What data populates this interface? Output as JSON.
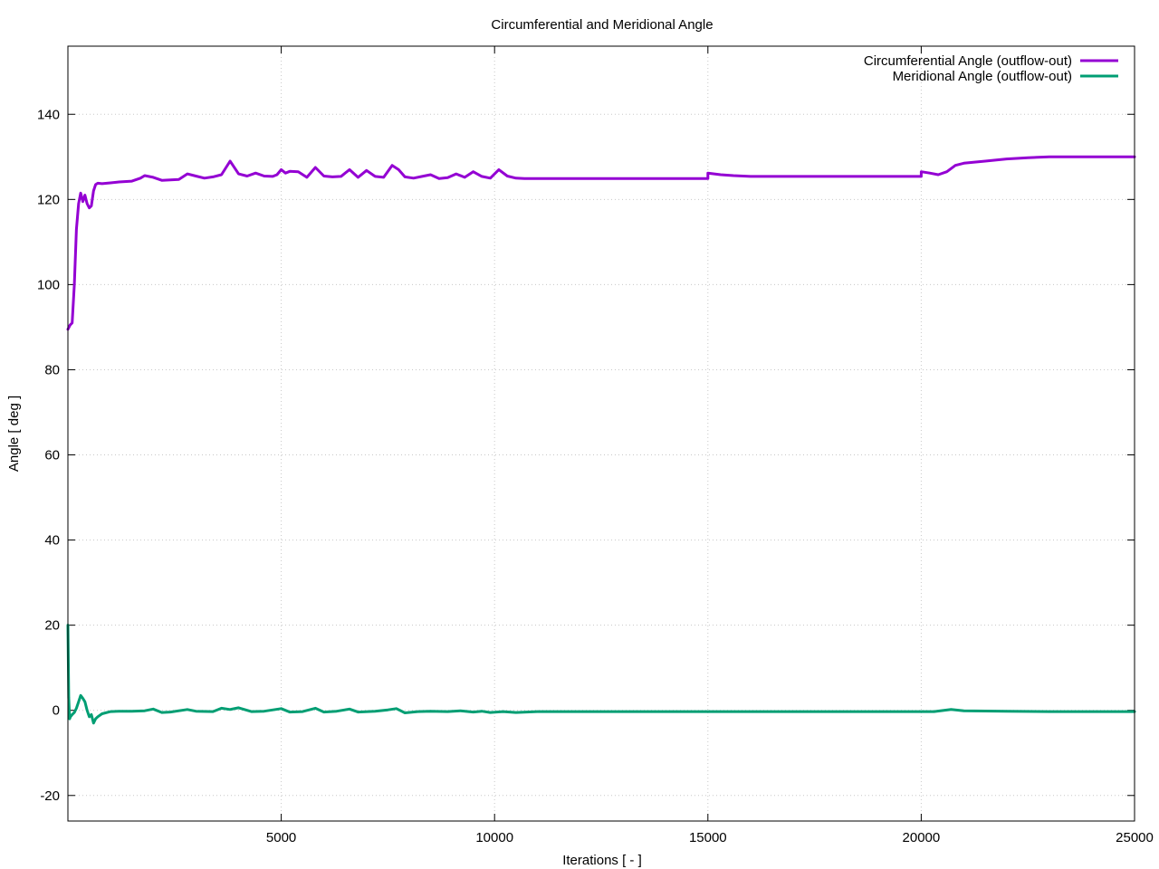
{
  "chart_data": {
    "type": "line",
    "title": "Circumferential and Meridional Angle",
    "xlabel": "Iterations [ - ]",
    "ylabel": "Angle [ deg ]",
    "xlim": [
      0,
      25000
    ],
    "ylim": [
      -26,
      156
    ],
    "xticks": [
      5000,
      10000,
      15000,
      20000,
      25000
    ],
    "yticks": [
      -20,
      0,
      20,
      40,
      60,
      80,
      100,
      120,
      140
    ],
    "grid": true,
    "legend_position": "top-right",
    "series": [
      {
        "name": "Circumferential Angle (outflow-out)",
        "color": "#9400d3",
        "x": [
          0,
          50,
          100,
          150,
          200,
          250,
          300,
          350,
          400,
          450,
          500,
          550,
          600,
          650,
          700,
          800,
          1000,
          1200,
          1500,
          1700,
          1800,
          2000,
          2200,
          2400,
          2600,
          2800,
          3000,
          3200,
          3400,
          3600,
          3800,
          4000,
          4200,
          4400,
          4600,
          4800,
          4900,
          5000,
          5100,
          5200,
          5400,
          5600,
          5800,
          6000,
          6200,
          6400,
          6600,
          6800,
          7000,
          7200,
          7400,
          7600,
          7750,
          7900,
          8100,
          8300,
          8500,
          8700,
          8900,
          9100,
          9300,
          9500,
          9700,
          9900,
          10100,
          10300,
          10500,
          10700,
          11000,
          12000,
          13000,
          14000,
          15000,
          15000,
          15300,
          15600,
          16000,
          17000,
          18000,
          19000,
          20000,
          20000,
          20200,
          20400,
          20600,
          20800,
          21000,
          21500,
          22000,
          22500,
          23000,
          24000,
          25000
        ],
        "y": [
          89.5,
          90.5,
          91,
          100,
          113,
          119,
          121.5,
          119.5,
          121,
          119,
          118,
          118.5,
          122,
          123.5,
          123.8,
          123.7,
          123.9,
          124.1,
          124.3,
          125,
          125.6,
          125.2,
          124.5,
          124.6,
          124.7,
          126,
          125.5,
          125,
          125.3,
          125.8,
          129,
          126,
          125.5,
          126.2,
          125.5,
          125.4,
          125.8,
          127,
          126.2,
          126.6,
          126.5,
          125.2,
          127.5,
          125.5,
          125.3,
          125.4,
          127,
          125.2,
          126.8,
          125.4,
          125.2,
          128,
          127,
          125.3,
          125,
          125.4,
          125.8,
          124.9,
          125.1,
          126,
          125.2,
          126.5,
          125.4,
          125,
          127,
          125.5,
          125,
          124.9,
          124.9,
          124.9,
          124.9,
          124.9,
          124.9,
          126.2,
          125.8,
          125.6,
          125.4,
          125.4,
          125.4,
          125.4,
          125.4,
          126.5,
          126.2,
          125.8,
          126.5,
          128,
          128.5,
          129,
          129.5,
          129.8,
          130,
          130,
          130
        ]
      },
      {
        "name": "Meridional Angle (outflow-out)",
        "color": "#009e73",
        "x": [
          0,
          20,
          40,
          60,
          100,
          150,
          200,
          250,
          300,
          350,
          400,
          450,
          500,
          550,
          600,
          650,
          700,
          800,
          1000,
          1200,
          1500,
          1800,
          2000,
          2200,
          2400,
          2800,
          3000,
          3400,
          3600,
          3800,
          4000,
          4300,
          4600,
          5000,
          5200,
          5500,
          5800,
          6000,
          6300,
          6600,
          6800,
          7200,
          7500,
          7700,
          7900,
          8200,
          8500,
          8900,
          9200,
          9500,
          9700,
          9900,
          10200,
          10500,
          11000,
          12000,
          13000,
          14000,
          15000,
          15300,
          16000,
          17000,
          18000,
          19000,
          20000,
          20300,
          20700,
          21000,
          22000,
          23000,
          24000,
          25000
        ],
        "y": [
          20,
          3,
          -2,
          -1.5,
          -1,
          -0.5,
          0.5,
          2,
          3.5,
          2.8,
          2,
          0,
          -1.5,
          -1,
          -3,
          -2,
          -1.5,
          -0.8,
          -0.3,
          -0.2,
          -0.2,
          -0.1,
          0.3,
          -0.5,
          -0.4,
          0.2,
          -0.2,
          -0.3,
          0.5,
          0.2,
          0.6,
          -0.3,
          -0.2,
          0.4,
          -0.4,
          -0.3,
          0.5,
          -0.4,
          -0.2,
          0.3,
          -0.4,
          -0.2,
          0.1,
          0.4,
          -0.6,
          -0.3,
          -0.2,
          -0.3,
          -0.1,
          -0.4,
          -0.2,
          -0.5,
          -0.3,
          -0.5,
          -0.3,
          -0.3,
          -0.3,
          -0.3,
          -0.3,
          -0.3,
          -0.3,
          -0.3,
          -0.3,
          -0.3,
          -0.3,
          -0.3,
          0.2,
          -0.1,
          -0.2,
          -0.3,
          -0.3,
          -0.3
        ]
      }
    ]
  }
}
